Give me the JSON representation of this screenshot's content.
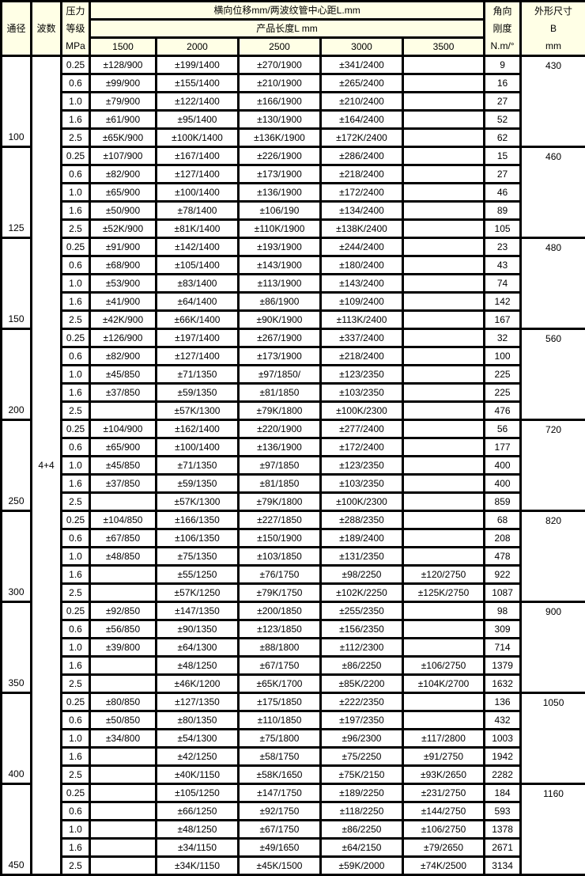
{
  "header": {
    "diameter": "通径",
    "waves": "波数",
    "pressure": [
      "压力",
      "等级",
      "MPa"
    ],
    "displacement_title": "横向位移mm/两波纹管中心距L.mm",
    "length_title": "产品长度L mm",
    "lengths": [
      "1500",
      "2000",
      "2500",
      "3000",
      "3500"
    ],
    "stiffness": [
      "角向",
      "刚度",
      "N.m/°"
    ],
    "size": [
      "外形尺寸",
      "B",
      "mm"
    ]
  },
  "waves_value": "4+4",
  "groups": [
    {
      "dn": "100",
      "b": "430",
      "rows": [
        [
          "0.25",
          "±128/900",
          "±199/1400",
          "±270/1900",
          "±341/2400",
          "",
          "9"
        ],
        [
          "0.6",
          "±99/900",
          "±155/1400",
          "±210/1900",
          "±265/2400",
          "",
          "16"
        ],
        [
          "1.0",
          "±79/900",
          "±122/1400",
          "±166/1900",
          "±210/2400",
          "",
          "27"
        ],
        [
          "1.6",
          "±61/900",
          "±95/1400",
          "±130/1900",
          "±164/2400",
          "",
          "52"
        ],
        [
          "2.5",
          "±65K/900",
          "±100K/1400",
          "±136K/1900",
          "±172K/2400",
          "",
          "62"
        ]
      ]
    },
    {
      "dn": "125",
      "b": "460",
      "rows": [
        [
          "0.25",
          "±107/900",
          "±167/1400",
          "±226/1900",
          "±286/2400",
          "",
          "15"
        ],
        [
          "0.6",
          "±82/900",
          "±127/1400",
          "±173/1900",
          "±218/2400",
          "",
          "27"
        ],
        [
          "1.0",
          "±65/900",
          "±100/1400",
          "±136/1900",
          "±172/2400",
          "",
          "46"
        ],
        [
          "1.6",
          "±50/900",
          "±78/1400",
          "±106/190",
          "±134/2400",
          "",
          "89"
        ],
        [
          "2.5",
          "±52K/900",
          "±81K/1400",
          "±110K/1900",
          "±138K/2400",
          "",
          "105"
        ]
      ]
    },
    {
      "dn": "150",
      "b": "480",
      "rows": [
        [
          "0.25",
          "±91/900",
          "±142/1400",
          "±193/1900",
          "±244/2400",
          "",
          "23"
        ],
        [
          "0.6",
          "±68/900",
          "±105/1400",
          "±143/1900",
          "±180/2400",
          "",
          "43"
        ],
        [
          "1.0",
          "±53/900",
          "±83/1400",
          "±113/1900",
          "±143/2400",
          "",
          "74"
        ],
        [
          "1.6",
          "±41/900",
          "±64/1400",
          "±86/1900",
          "±109/2400",
          "",
          "142"
        ],
        [
          "2.5",
          "±42K/900",
          "±66K/1400",
          "±90K/1900",
          "±113K/2400",
          "",
          "167"
        ]
      ]
    },
    {
      "dn": "200",
      "b": "560",
      "rows": [
        [
          "0.25",
          "±126/900",
          "±197/1400",
          "±267/1900",
          "±337/2400",
          "",
          "32"
        ],
        [
          "0.6",
          "±82/900",
          "±127/1400",
          "±173/1900",
          "±218/2400",
          "",
          "100"
        ],
        [
          "1.0",
          "±45/850",
          "±71/1350",
          "±97/1850/",
          "±123/2350",
          "",
          "225"
        ],
        [
          "1.6",
          "±37/850",
          "±59/1350",
          "±81/1850",
          "±103/2350",
          "",
          "225"
        ],
        [
          "2.5",
          "",
          "±57K/1300",
          "±79K/1800",
          "±100K/2300",
          "",
          "476"
        ]
      ]
    },
    {
      "dn": "250",
      "b": "720",
      "rows": [
        [
          "0.25",
          "±104/900",
          "±162/1400",
          "±220/1900",
          "±277/2400",
          "",
          "56"
        ],
        [
          "0.6",
          "±65/900",
          "±100/1400",
          "±136/1900",
          "±172/2400",
          "",
          "177"
        ],
        [
          "1.0",
          "±45/850",
          "±71/1350",
          "±97/1850",
          "±123/2350",
          "",
          "400"
        ],
        [
          "1.6",
          "±37/850",
          "±59/1350",
          "±81/1850",
          "±103/2350",
          "",
          "400"
        ],
        [
          "2.5",
          "",
          "±57K/1300",
          "±79K/1800",
          "±100K/2300",
          "",
          "859"
        ]
      ]
    },
    {
      "dn": "300",
      "b": "820",
      "rows": [
        [
          "0.25",
          "±104/850",
          "±166/1350",
          "±227/1850",
          "±288/2350",
          "",
          "68"
        ],
        [
          "0.6",
          "±67/850",
          "±106/1350",
          "±150/1900",
          "±189/2400",
          "",
          "208"
        ],
        [
          "1.0",
          "±48/850",
          "±75/1350",
          "±103/1850",
          "±131/2350",
          "",
          "478"
        ],
        [
          "1.6",
          "",
          "±55/1250",
          "±76/1750",
          "±98/2250",
          "±120/2750",
          "922"
        ],
        [
          "2.5",
          "",
          "±57K/1250",
          "±79K/1750",
          "±102K/2250",
          "±125K/2750",
          "1087"
        ]
      ]
    },
    {
      "dn": "350",
      "b": "900",
      "rows": [
        [
          "0.25",
          "±92/850",
          "±147/1350",
          "±200/1850",
          "±255/2350",
          "",
          "98"
        ],
        [
          "0.6",
          "±56/850",
          "±90/1350",
          "±123/1850",
          "±156/2350",
          "",
          "309"
        ],
        [
          "1.0",
          "±39/800",
          "±64/1300",
          "±88/1800",
          "±112/2300",
          "",
          "714"
        ],
        [
          "1.6",
          "",
          "±48/1250",
          "±67/1750",
          "±86/2250",
          "±106/2750",
          "1379"
        ],
        [
          "2.5",
          "",
          "±46K/1200",
          "±65K/1700",
          "±85K/2200",
          "±104K/2700",
          "1632"
        ]
      ]
    },
    {
      "dn": "400",
      "b": "1050",
      "rows": [
        [
          "0.25",
          "±80/850",
          "±127/1350",
          "±175/1850",
          "±222/2350",
          "",
          "136"
        ],
        [
          "0.6",
          "±50/850",
          "±80/1350",
          "±110/1850",
          "±197/2350",
          "",
          "432"
        ],
        [
          "1.0",
          "±34/800",
          "±54/1300",
          "±75/1800",
          "±96/2300",
          "±117/2800",
          "1003"
        ],
        [
          "1.6",
          "",
          "±42/1250",
          "±58/1750",
          "±75/2250",
          "±91/2750",
          "1942"
        ],
        [
          "2.5",
          "",
          "±40K/1150",
          "±58K/1650",
          "±75K/2150",
          "±93K/2650",
          "2282"
        ]
      ]
    },
    {
      "dn": "450",
      "b": "1160",
      "rows": [
        [
          "0.25",
          "",
          "±105/1250",
          "±147/1750",
          "±189/2250",
          "±231/2750",
          "184"
        ],
        [
          "0.6",
          "",
          "±66/1250",
          "±92/1750",
          "±118/2250",
          "±144/2750",
          "593"
        ],
        [
          "1.0",
          "",
          "±48/1250",
          "±67/1750",
          "±86/2250",
          "±106/2750",
          "1378"
        ],
        [
          "1.6",
          "",
          "±34/1150",
          "±49/1650",
          "±64/2150",
          "±79/2650",
          "2671"
        ],
        [
          "2.5",
          "",
          "±34K/1150",
          "±45K/1500",
          "±59K/2000",
          "±74K/2500",
          "3134"
        ]
      ]
    }
  ]
}
